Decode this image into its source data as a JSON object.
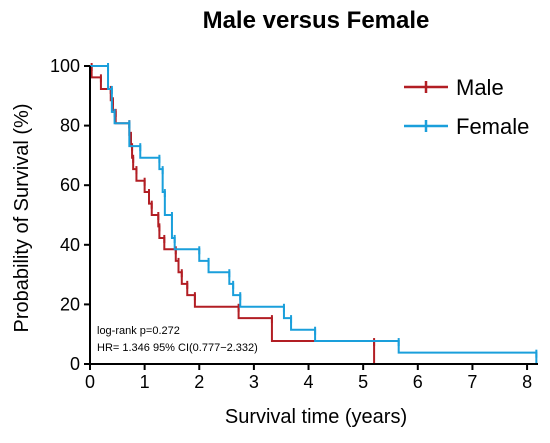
{
  "chart_data": {
    "type": "line",
    "subtype": "kaplan-meier",
    "title": "Male versus Female",
    "xlabel": "Survival time (years)",
    "ylabel": "Probability of Survival (%)",
    "xlim": [
      0,
      8.2
    ],
    "ylim": [
      0,
      100
    ],
    "xticks": [
      0,
      1,
      2,
      3,
      4,
      5,
      6,
      7,
      8
    ],
    "yticks": [
      0,
      20,
      40,
      60,
      80,
      100
    ],
    "grid": false,
    "legend_position": "top-right",
    "annotations": [
      "log-rank p=0.272",
      "HR= 1.346 95% CI(0.777−2.332)"
    ],
    "series": [
      {
        "name": "Male",
        "color": "#b21e24",
        "steps": [
          [
            0,
            100
          ],
          [
            0.03,
            96.2
          ],
          [
            0.2,
            92.3
          ],
          [
            0.38,
            88.5
          ],
          [
            0.42,
            84.6
          ],
          [
            0.47,
            80.8
          ],
          [
            0.72,
            76.9
          ],
          [
            0.75,
            73.1
          ],
          [
            0.77,
            69.2
          ],
          [
            0.79,
            65.4
          ],
          [
            0.85,
            61.5
          ],
          [
            1.0,
            57.7
          ],
          [
            1.08,
            53.8
          ],
          [
            1.13,
            50.0
          ],
          [
            1.25,
            46.2
          ],
          [
            1.27,
            42.3
          ],
          [
            1.36,
            38.5
          ],
          [
            1.57,
            34.6
          ],
          [
            1.62,
            30.8
          ],
          [
            1.68,
            26.9
          ],
          [
            1.78,
            23.1
          ],
          [
            1.92,
            19.2
          ],
          [
            2.72,
            15.4
          ],
          [
            3.33,
            7.7
          ],
          [
            5.2,
            0
          ]
        ],
        "x_end": 5.2
      },
      {
        "name": "Female",
        "color": "#1a9fdb",
        "steps": [
          [
            0,
            100
          ],
          [
            0.33,
            92.3
          ],
          [
            0.4,
            84.6
          ],
          [
            0.45,
            80.8
          ],
          [
            0.72,
            73.1
          ],
          [
            0.92,
            69.2
          ],
          [
            1.27,
            65.4
          ],
          [
            1.33,
            57.7
          ],
          [
            1.37,
            50.0
          ],
          [
            1.5,
            42.3
          ],
          [
            1.55,
            38.5
          ],
          [
            2.0,
            34.6
          ],
          [
            2.17,
            30.8
          ],
          [
            2.55,
            26.9
          ],
          [
            2.62,
            23.1
          ],
          [
            2.75,
            19.2
          ],
          [
            3.55,
            15.4
          ],
          [
            3.68,
            11.5
          ],
          [
            4.12,
            7.7
          ],
          [
            5.65,
            3.8
          ],
          [
            8.17,
            0
          ]
        ],
        "x_end": 8.17
      }
    ]
  }
}
